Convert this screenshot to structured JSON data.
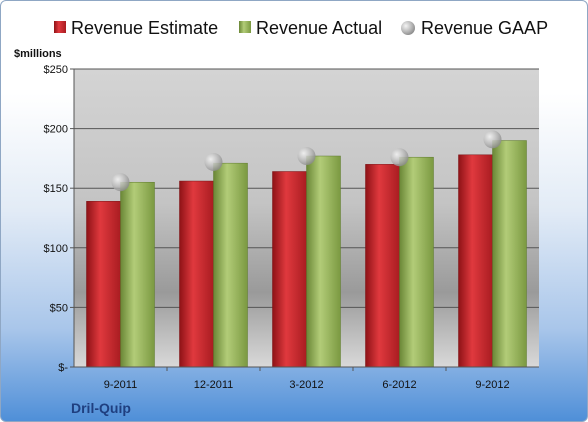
{
  "chart_data": {
    "type": "bar",
    "title": "",
    "company": "Dril-Quip",
    "ylabel": "$millions",
    "ylim": [
      0,
      250
    ],
    "yticks": [
      0,
      50,
      100,
      150,
      200,
      250
    ],
    "ytick_labels": [
      "$-",
      "$50",
      "$100",
      "$150",
      "$200",
      "$250"
    ],
    "categories": [
      "9-2011",
      "12-2011",
      "3-2012",
      "6-2012",
      "9-2012"
    ],
    "series": [
      {
        "name": "Revenue Estimate",
        "kind": "bar",
        "color": "#c0282d",
        "values": [
          139,
          156,
          164,
          170,
          178
        ]
      },
      {
        "name": "Revenue Actual",
        "kind": "bar",
        "color": "#8fae52",
        "values": [
          155,
          171,
          177,
          176,
          190
        ]
      },
      {
        "name": "Revenue GAAP",
        "kind": "marker",
        "color": "#a6a6a6",
        "values": [
          155,
          172,
          177,
          176,
          191
        ]
      }
    ],
    "grid": true,
    "legend_position": "top"
  }
}
